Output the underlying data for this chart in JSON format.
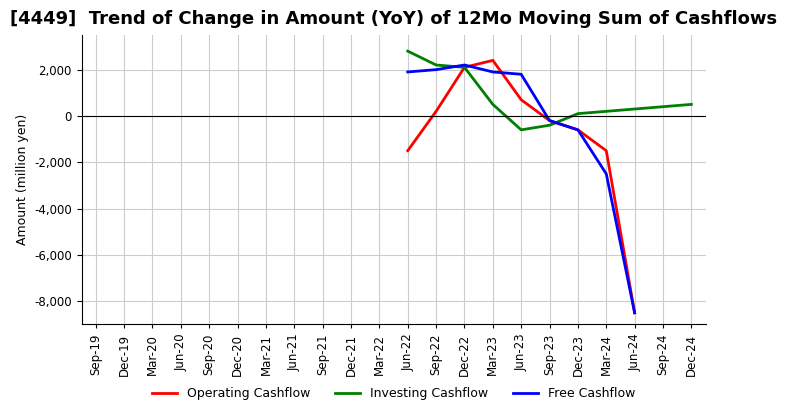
{
  "title": "[4449]  Trend of Change in Amount (YoY) of 12Mo Moving Sum of Cashflows",
  "ylabel": "Amount (million yen)",
  "x_labels": [
    "Sep-19",
    "Dec-19",
    "Mar-20",
    "Jun-20",
    "Sep-20",
    "Dec-20",
    "Mar-21",
    "Jun-21",
    "Sep-21",
    "Dec-21",
    "Mar-22",
    "Jun-22",
    "Sep-22",
    "Dec-22",
    "Mar-23",
    "Jun-23",
    "Sep-23",
    "Dec-23",
    "Mar-24",
    "Jun-24",
    "Sep-24",
    "Dec-24"
  ],
  "operating_cashflow": [
    null,
    null,
    null,
    null,
    null,
    null,
    null,
    null,
    null,
    null,
    null,
    -1500,
    200,
    2100,
    2400,
    700,
    -200,
    -600,
    -1500,
    -8500,
    null,
    null
  ],
  "investing_cashflow": [
    null,
    null,
    null,
    null,
    null,
    null,
    null,
    null,
    null,
    null,
    null,
    2800,
    2200,
    2100,
    500,
    -600,
    -400,
    100,
    200,
    300,
    400,
    500
  ],
  "free_cashflow": [
    null,
    null,
    null,
    null,
    null,
    null,
    null,
    null,
    null,
    null,
    null,
    1900,
    2000,
    2200,
    1900,
    1800,
    -200,
    -600,
    -2500,
    -8500,
    null,
    null
  ],
  "ylim": [
    -9000,
    3500
  ],
  "yticks": [
    2000,
    0,
    -2000,
    -4000,
    -6000,
    -8000
  ],
  "operating_color": "#ff0000",
  "investing_color": "#008000",
  "free_color": "#0000ff",
  "background_color": "#ffffff",
  "grid_color": "#cccccc",
  "title_fontsize": 13,
  "label_fontsize": 9,
  "tick_fontsize": 8.5
}
